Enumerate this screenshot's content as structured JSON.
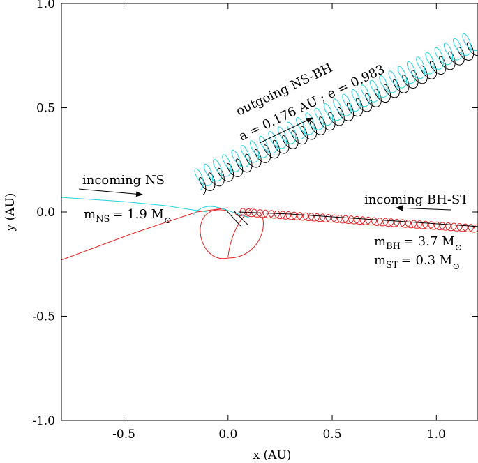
{
  "chart_data": {
    "type": "line",
    "xlabel": "x (AU)",
    "ylabel": "y (AU)",
    "xlim": [
      -0.8,
      1.2
    ],
    "ylim": [
      -1.0,
      1.0
    ],
    "xticks": [
      -0.5,
      0.0,
      0.5,
      1.0
    ],
    "yticks": [
      -1.0,
      -0.5,
      0.0,
      0.5,
      1.0
    ],
    "xtick_labels": [
      "-0.5",
      "0.0",
      "0.5",
      "1.0"
    ],
    "ytick_labels": [
      "-1.0",
      "-0.5",
      "0.0",
      "0.5",
      "1.0"
    ],
    "grid": false,
    "colors": {
      "ns": "#22d3e0",
      "bh": "#000000",
      "st": "#e52020"
    },
    "series": [
      {
        "name": "NS",
        "color": "#22d3e0",
        "path": [
          [
            -0.8,
            0.07
          ],
          [
            -0.5,
            0.05
          ],
          [
            -0.3,
            0.03
          ],
          [
            -0.17,
            0.01
          ],
          [
            -0.1,
            0.0
          ]
        ]
      },
      {
        "name": "ST",
        "color": "#e52020",
        "path": [
          [
            -0.8,
            -0.23
          ],
          [
            -0.45,
            -0.1
          ],
          [
            -0.15,
            0.0
          ],
          [
            0.0,
            0.02
          ]
        ]
      },
      {
        "name": "BH",
        "color": "#000000",
        "path": [
          [
            1.2,
            -0.07
          ],
          [
            0.9,
            -0.05
          ],
          [
            0.6,
            -0.03
          ],
          [
            0.3,
            -0.01
          ],
          [
            0.05,
            0.0
          ]
        ]
      }
    ],
    "outgoing_binary": {
      "start": [
        -0.13,
        0.1
      ],
      "end": [
        1.2,
        0.77
      ],
      "a": 0.176,
      "e": 0.983
    },
    "incoming_binary": {
      "start": [
        1.2,
        -0.08
      ],
      "end": [
        0.05,
        0.0
      ]
    },
    "annotations": {
      "outgoing_title": "outgoing  NS-BH",
      "outgoing_params": "a = 0.176 AU ; e = 0.983",
      "incoming_ns": "incoming NS",
      "incoming_bhst": "incoming BH-ST",
      "m_ns_m": "m",
      "m_ns_sub": "NS",
      "m_ns_val": "= 1.9 M",
      "m_ns_sym": "⊙",
      "m_bh_m": "m",
      "m_bh_sub": "BH",
      "m_bh_val": "= 3.7 M",
      "m_bh_sym": "⊙",
      "m_st_m": "m",
      "m_st_sub": "ST",
      "m_st_val": "= 0.3 M",
      "m_st_sym": "⊙"
    }
  }
}
